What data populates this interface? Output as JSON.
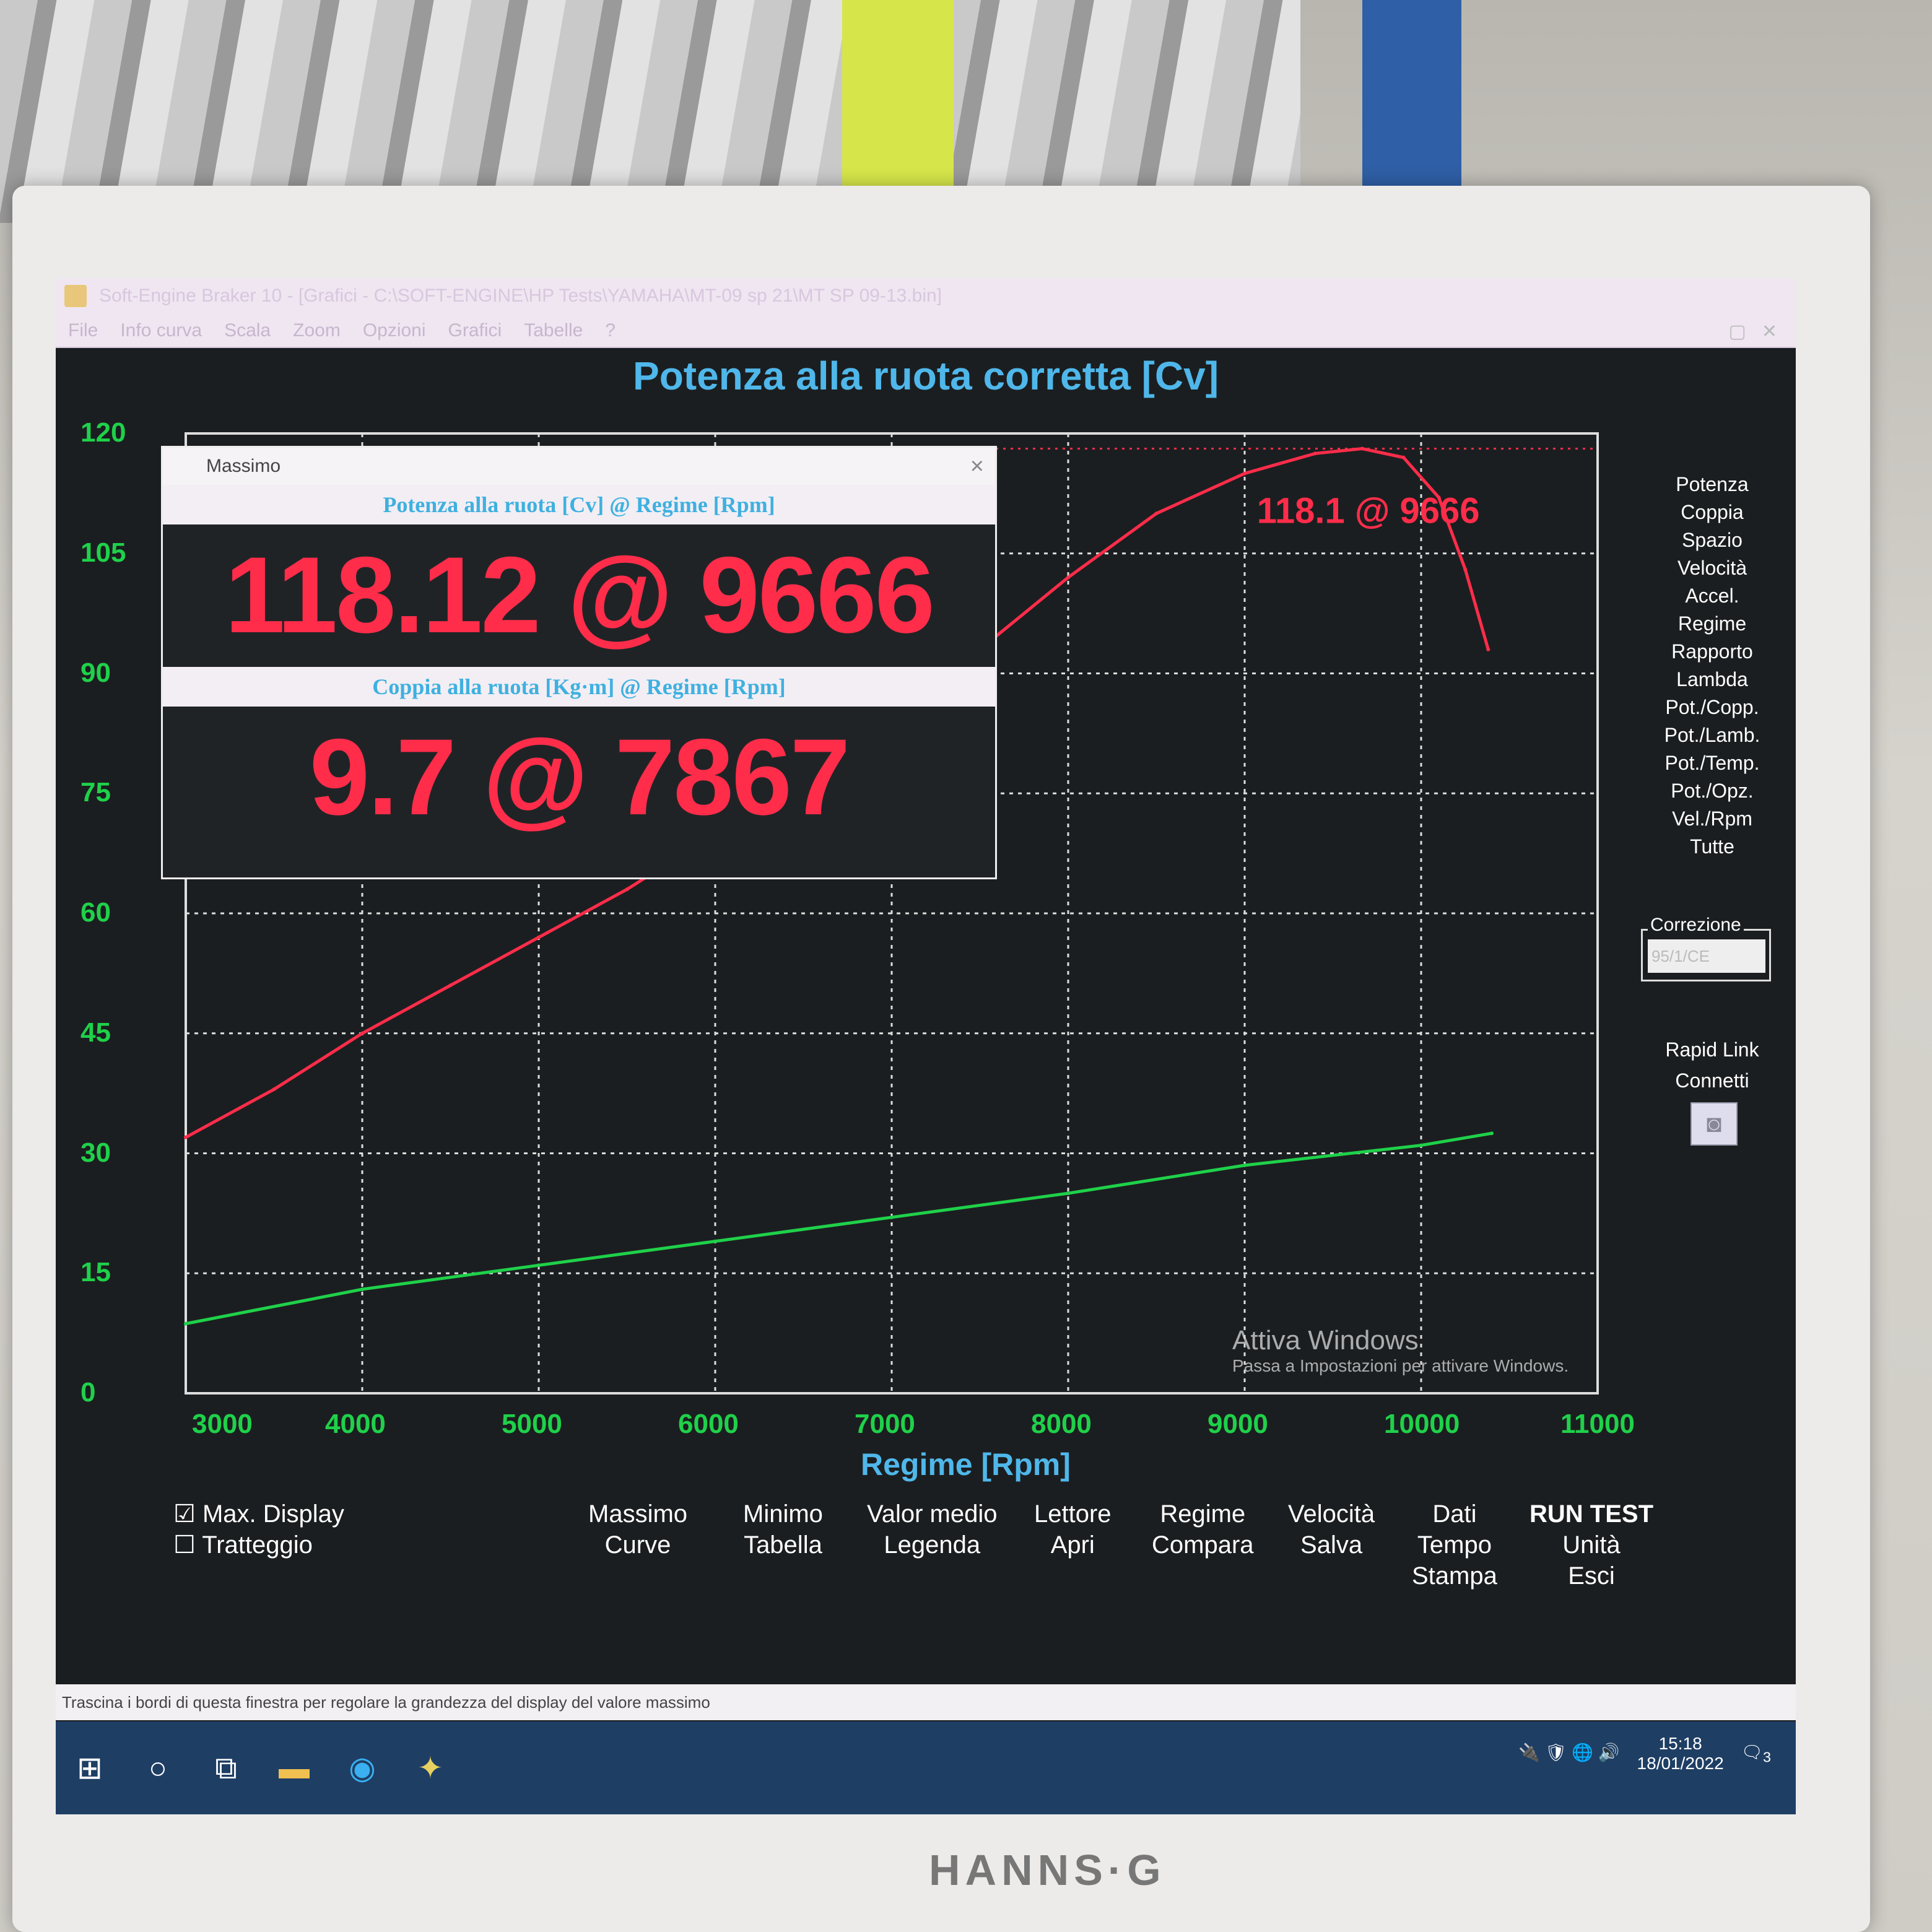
{
  "window": {
    "title": "Soft-Engine Braker 10 - [Grafici - C:\\SOFT-ENGINE\\HP Tests\\YAMAHA\\MT-09 sp 21\\MT SP 09-13.bin]"
  },
  "menu": [
    "File",
    "Info curva",
    "Scala",
    "Zoom",
    "Opzioni",
    "Grafici",
    "Tabelle",
    "?"
  ],
  "chart_data": {
    "type": "line",
    "title": "Potenza alla ruota corretta [Cv]",
    "xlabel": "Regime [Rpm]",
    "ylabel": "",
    "xlim": [
      3000,
      11000
    ],
    "ylim": [
      0,
      120
    ],
    "xticks": [
      "3000",
      "4000",
      "5000",
      "6000",
      "7000",
      "8000",
      "9000",
      "10000",
      "11000"
    ],
    "yticks": [
      "0",
      "15",
      "30",
      "45",
      "60",
      "75",
      "90",
      "105",
      "120"
    ],
    "grid": true,
    "annotation": "118.1 @ 9666",
    "series": [
      {
        "color": "#ff2d4a",
        "x": [
          3000,
          3500,
          4000,
          4500,
          5000,
          5500,
          6000,
          6500,
          7000,
          7500,
          8000,
          8500,
          9000,
          9400,
          9666,
          9900,
          10100,
          10250,
          10380
        ],
        "y": [
          32,
          38,
          45,
          51,
          57,
          63,
          70,
          77,
          84,
          93,
          102,
          110,
          115,
          117.5,
          118.1,
          117,
          112,
          103,
          93
        ]
      },
      {
        "color": "#1fd14a",
        "x": [
          3000,
          4000,
          5000,
          6000,
          7000,
          8000,
          9000,
          10000,
          10400
        ],
        "y": [
          8.7,
          13,
          16,
          19,
          22,
          25,
          28.5,
          31,
          32.5
        ]
      }
    ]
  },
  "right_menu": [
    "Potenza",
    "Coppia",
    "Spazio",
    "Velocità",
    "Accel.",
    "Regime",
    "Rapporto",
    "Lambda",
    "Pot./Copp.",
    "Pot./Lamb.",
    "Pot./Temp.",
    "Pot./Opz.",
    "Vel./Rpm",
    "Tutte"
  ],
  "correction": {
    "label": "Correzione",
    "value": "95/1/CE"
  },
  "rapid": {
    "line1": "Rapid Link",
    "line2": "Connetti"
  },
  "dialog": {
    "title": "Massimo",
    "power_header": "Potenza alla ruota [Cv] @ Regime [Rpm]",
    "power_value": "118.12 @ 9666",
    "torque_header": "Coppia alla ruota [Kg·m] @ Regime [Rpm]",
    "torque_value": "9.7 @ 7867"
  },
  "buttons": {
    "max_display": "Max. Display",
    "tratteggio": "Tratteggio",
    "massimo": "Massimo",
    "curve": "Curve",
    "minimo": "Minimo",
    "tabella": "Tabella",
    "valor_medio": "Valor medio",
    "legenda": "Legenda",
    "lettore": "Lettore",
    "apri": "Apri",
    "regime": "Regime",
    "compara": "Compara",
    "velocita": "Velocità",
    "salva": "Salva",
    "dati": "Dati",
    "tempo": "Tempo",
    "stampa": "Stampa",
    "run_test": "RUN TEST",
    "unita": "Unità",
    "esci": "Esci"
  },
  "checkbox": {
    "max_display_checked": true,
    "tratteggio_checked": false
  },
  "watermark": {
    "line1": "Attiva Windows",
    "line2": "Passa a Impostazioni per attivare Windows."
  },
  "status": "Trascina i bordi di questa finestra per regolare la grandezza del display del valore massimo",
  "tray": {
    "time": "15:18",
    "date": "18/01/2022",
    "notifications": "3"
  },
  "monitor_brand": "HANNS·G"
}
